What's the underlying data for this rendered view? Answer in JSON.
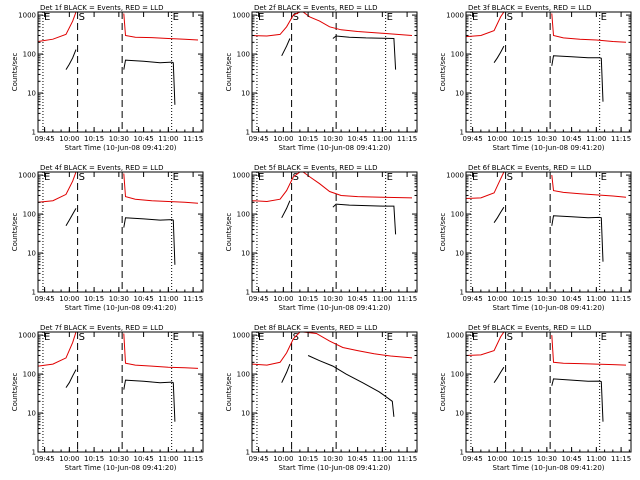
{
  "colors": {
    "events": "#000000",
    "lld": "#e00000",
    "axis": "#000000"
  },
  "common": {
    "x_ticks": [
      "09:45",
      "10:00",
      "10:15",
      "10:30",
      "10:45",
      "11:00",
      "11:15"
    ],
    "x_tick_minutes": [
      585,
      600,
      615,
      630,
      645,
      660,
      675
    ],
    "y_ticks": [
      "1",
      "10",
      "100",
      "1000"
    ],
    "y_tick_values": [
      1,
      10,
      100,
      1000
    ],
    "xlim": [
      581,
      681
    ],
    "ylim": [
      1,
      1200
    ],
    "ylabel": "Counts/sec",
    "xlabel": "Start Time (10-Jun-08 09:41:20)",
    "markers": [
      {
        "label": "E",
        "minute": 584,
        "style": "dotted"
      },
      {
        "label": "S",
        "minute": 605,
        "style": "dashed"
      },
      {
        "label": "",
        "minute": 632,
        "style": "dashed"
      },
      {
        "label": "E",
        "minute": 662,
        "style": "dotted"
      }
    ]
  },
  "chart_data": [
    {
      "type": "line",
      "title": "Det 1f BLACK = Events, RED = LLD",
      "series": [
        {
          "name": "LLD",
          "color": "#e00000",
          "x": [
            581,
            590,
            598,
            602,
            604
          ],
          "y": [
            210,
            240,
            320,
            700,
            1200
          ]
        },
        {
          "name": "LLD",
          "color": "#e00000",
          "x": [
            633,
            634,
            640,
            650,
            660,
            670,
            678
          ],
          "y": [
            1100,
            300,
            270,
            265,
            250,
            240,
            230
          ]
        },
        {
          "name": "Events",
          "color": "#000000",
          "x": [
            598,
            600,
            602,
            604
          ],
          "y": [
            40,
            55,
            80,
            130
          ]
        },
        {
          "name": "Events",
          "color": "#000000",
          "x": [
            633,
            634,
            645,
            655,
            662,
            663,
            664
          ],
          "y": [
            40,
            70,
            65,
            60,
            62,
            60,
            5
          ]
        }
      ]
    },
    {
      "type": "line",
      "title": "Det 2f BLACK = Events, RED = LLD",
      "series": [
        {
          "name": "LLD",
          "color": "#e00000",
          "x": [
            581,
            590,
            598,
            602,
            606,
            610,
            612
          ],
          "y": [
            300,
            290,
            320,
            500,
            1000,
            1200,
            1200
          ]
        },
        {
          "name": "LLD",
          "color": "#e00000",
          "x": [
            612,
            616,
            622,
            628,
            635,
            645,
            660,
            678
          ],
          "y": [
            1200,
            900,
            700,
            500,
            420,
            380,
            340,
            300
          ]
        },
        {
          "name": "Events",
          "color": "#000000",
          "x": [
            599,
            602,
            604
          ],
          "y": [
            90,
            160,
            250
          ]
        },
        {
          "name": "Events",
          "color": "#000000",
          "x": [
            630,
            632,
            640,
            650,
            660,
            667,
            668
          ],
          "y": [
            250,
            290,
            270,
            260,
            255,
            250,
            40
          ]
        }
      ]
    },
    {
      "type": "line",
      "title": "Det 3f BLACK = Events, RED = LLD",
      "series": [
        {
          "name": "LLD",
          "color": "#e00000",
          "x": [
            581,
            590,
            598,
            602,
            604
          ],
          "y": [
            280,
            300,
            400,
            900,
            1200
          ]
        },
        {
          "name": "LLD",
          "color": "#e00000",
          "x": [
            633,
            634,
            640,
            650,
            660,
            670,
            678
          ],
          "y": [
            1100,
            300,
            260,
            240,
            230,
            210,
            200
          ]
        },
        {
          "name": "Events",
          "color": "#000000",
          "x": [
            598,
            600,
            602,
            604
          ],
          "y": [
            60,
            80,
            110,
            160
          ]
        },
        {
          "name": "Events",
          "color": "#000000",
          "x": [
            633,
            634,
            645,
            655,
            662,
            663,
            664
          ],
          "y": [
            50,
            90,
            85,
            80,
            80,
            78,
            6
          ]
        }
      ]
    },
    {
      "type": "line",
      "title": "Det 4f BLACK = Events, RED = LLD",
      "series": [
        {
          "name": "LLD",
          "color": "#e00000",
          "x": [
            581,
            590,
            598,
            602,
            604
          ],
          "y": [
            200,
            220,
            320,
            700,
            1200
          ]
        },
        {
          "name": "LLD",
          "color": "#e00000",
          "x": [
            633,
            634,
            640,
            650,
            660,
            670,
            678
          ],
          "y": [
            1100,
            280,
            240,
            220,
            210,
            200,
            190
          ]
        },
        {
          "name": "Events",
          "color": "#000000",
          "x": [
            598,
            600,
            602,
            604
          ],
          "y": [
            50,
            70,
            100,
            140
          ]
        },
        {
          "name": "Events",
          "color": "#000000",
          "x": [
            633,
            634,
            645,
            655,
            662,
            663,
            664
          ],
          "y": [
            45,
            80,
            75,
            70,
            72,
            70,
            5
          ]
        }
      ]
    },
    {
      "type": "line",
      "title": "Det 5f BLACK = Events, RED = LLD",
      "series": [
        {
          "name": "LLD",
          "color": "#e00000",
          "x": [
            581,
            590,
            598,
            602,
            606,
            610,
            612
          ],
          "y": [
            220,
            210,
            240,
            400,
            900,
            1200,
            1200
          ]
        },
        {
          "name": "LLD",
          "color": "#e00000",
          "x": [
            612,
            616,
            622,
            628,
            635,
            645,
            660,
            678
          ],
          "y": [
            1200,
            900,
            600,
            380,
            300,
            280,
            270,
            260
          ]
        },
        {
          "name": "Events",
          "color": "#000000",
          "x": [
            599,
            602,
            604
          ],
          "y": [
            80,
            140,
            220
          ]
        },
        {
          "name": "Events",
          "color": "#000000",
          "x": [
            630,
            632,
            640,
            650,
            660,
            667,
            668
          ],
          "y": [
            150,
            180,
            170,
            165,
            160,
            160,
            30
          ]
        }
      ]
    },
    {
      "type": "line",
      "title": "Det 6f BLACK = Events, RED = LLD",
      "series": [
        {
          "name": "LLD",
          "color": "#e00000",
          "x": [
            581,
            590,
            598,
            602,
            604
          ],
          "y": [
            250,
            260,
            350,
            800,
            1200
          ]
        },
        {
          "name": "LLD",
          "color": "#e00000",
          "x": [
            633,
            634,
            640,
            650,
            660,
            670,
            678
          ],
          "y": [
            1000,
            400,
            360,
            330,
            310,
            290,
            270
          ]
        },
        {
          "name": "Events",
          "color": "#000000",
          "x": [
            598,
            600,
            602,
            604
          ],
          "y": [
            60,
            80,
            110,
            150
          ]
        },
        {
          "name": "Events",
          "color": "#000000",
          "x": [
            633,
            634,
            645,
            655,
            662,
            663,
            664
          ],
          "y": [
            50,
            90,
            85,
            80,
            82,
            80,
            6
          ]
        }
      ]
    },
    {
      "type": "line",
      "title": "Det 7f BLACK = Events, RED = LLD",
      "series": [
        {
          "name": "LLD",
          "color": "#e00000",
          "x": [
            581,
            590,
            598,
            602,
            604
          ],
          "y": [
            160,
            180,
            260,
            650,
            1200
          ]
        },
        {
          "name": "LLD",
          "color": "#e00000",
          "x": [
            633,
            634,
            640,
            650,
            660,
            670,
            678
          ],
          "y": [
            1100,
            190,
            170,
            160,
            150,
            145,
            140
          ]
        },
        {
          "name": "Events",
          "color": "#000000",
          "x": [
            598,
            600,
            602,
            604
          ],
          "y": [
            45,
            60,
            90,
            130
          ]
        },
        {
          "name": "Events",
          "color": "#000000",
          "x": [
            633,
            634,
            645,
            655,
            662,
            663,
            664
          ],
          "y": [
            40,
            70,
            65,
            60,
            62,
            60,
            6
          ]
        }
      ]
    },
    {
      "type": "line",
      "title": "Det 8f BLACK = Events, RED = LLD",
      "series": [
        {
          "name": "LLD",
          "color": "#e00000",
          "x": [
            581,
            590,
            598,
            602,
            606,
            610,
            612
          ],
          "y": [
            180,
            170,
            200,
            350,
            800,
            1200,
            1200
          ]
        },
        {
          "name": "LLD",
          "color": "#e00000",
          "x": [
            612,
            620,
            628,
            636,
            645,
            655,
            665,
            678
          ],
          "y": [
            1200,
            1100,
            700,
            480,
            400,
            330,
            290,
            260
          ]
        },
        {
          "name": "Events",
          "color": "#000000",
          "x": [
            599,
            602,
            604
          ],
          "y": [
            60,
            110,
            180
          ]
        },
        {
          "name": "Events",
          "color": "#000000",
          "x": [
            615,
            622,
            630,
            638,
            648,
            658,
            666,
            667
          ],
          "y": [
            300,
            220,
            160,
            100,
            60,
            35,
            20,
            8
          ]
        }
      ]
    },
    {
      "type": "line",
      "title": "Det 9f BLACK = Events, RED = LLD",
      "series": [
        {
          "name": "LLD",
          "color": "#e00000",
          "x": [
            581,
            590,
            598,
            602,
            604
          ],
          "y": [
            300,
            310,
            400,
            900,
            1200
          ]
        },
        {
          "name": "LLD",
          "color": "#e00000",
          "x": [
            633,
            634,
            640,
            650,
            660,
            670,
            678
          ],
          "y": [
            1000,
            200,
            190,
            185,
            180,
            175,
            170
          ]
        },
        {
          "name": "Events",
          "color": "#000000",
          "x": [
            598,
            600,
            602,
            604
          ],
          "y": [
            60,
            80,
            110,
            150
          ]
        },
        {
          "name": "Events",
          "color": "#000000",
          "x": [
            633,
            634,
            645,
            655,
            662,
            663,
            664
          ],
          "y": [
            50,
            75,
            70,
            65,
            66,
            64,
            6
          ]
        }
      ]
    }
  ]
}
